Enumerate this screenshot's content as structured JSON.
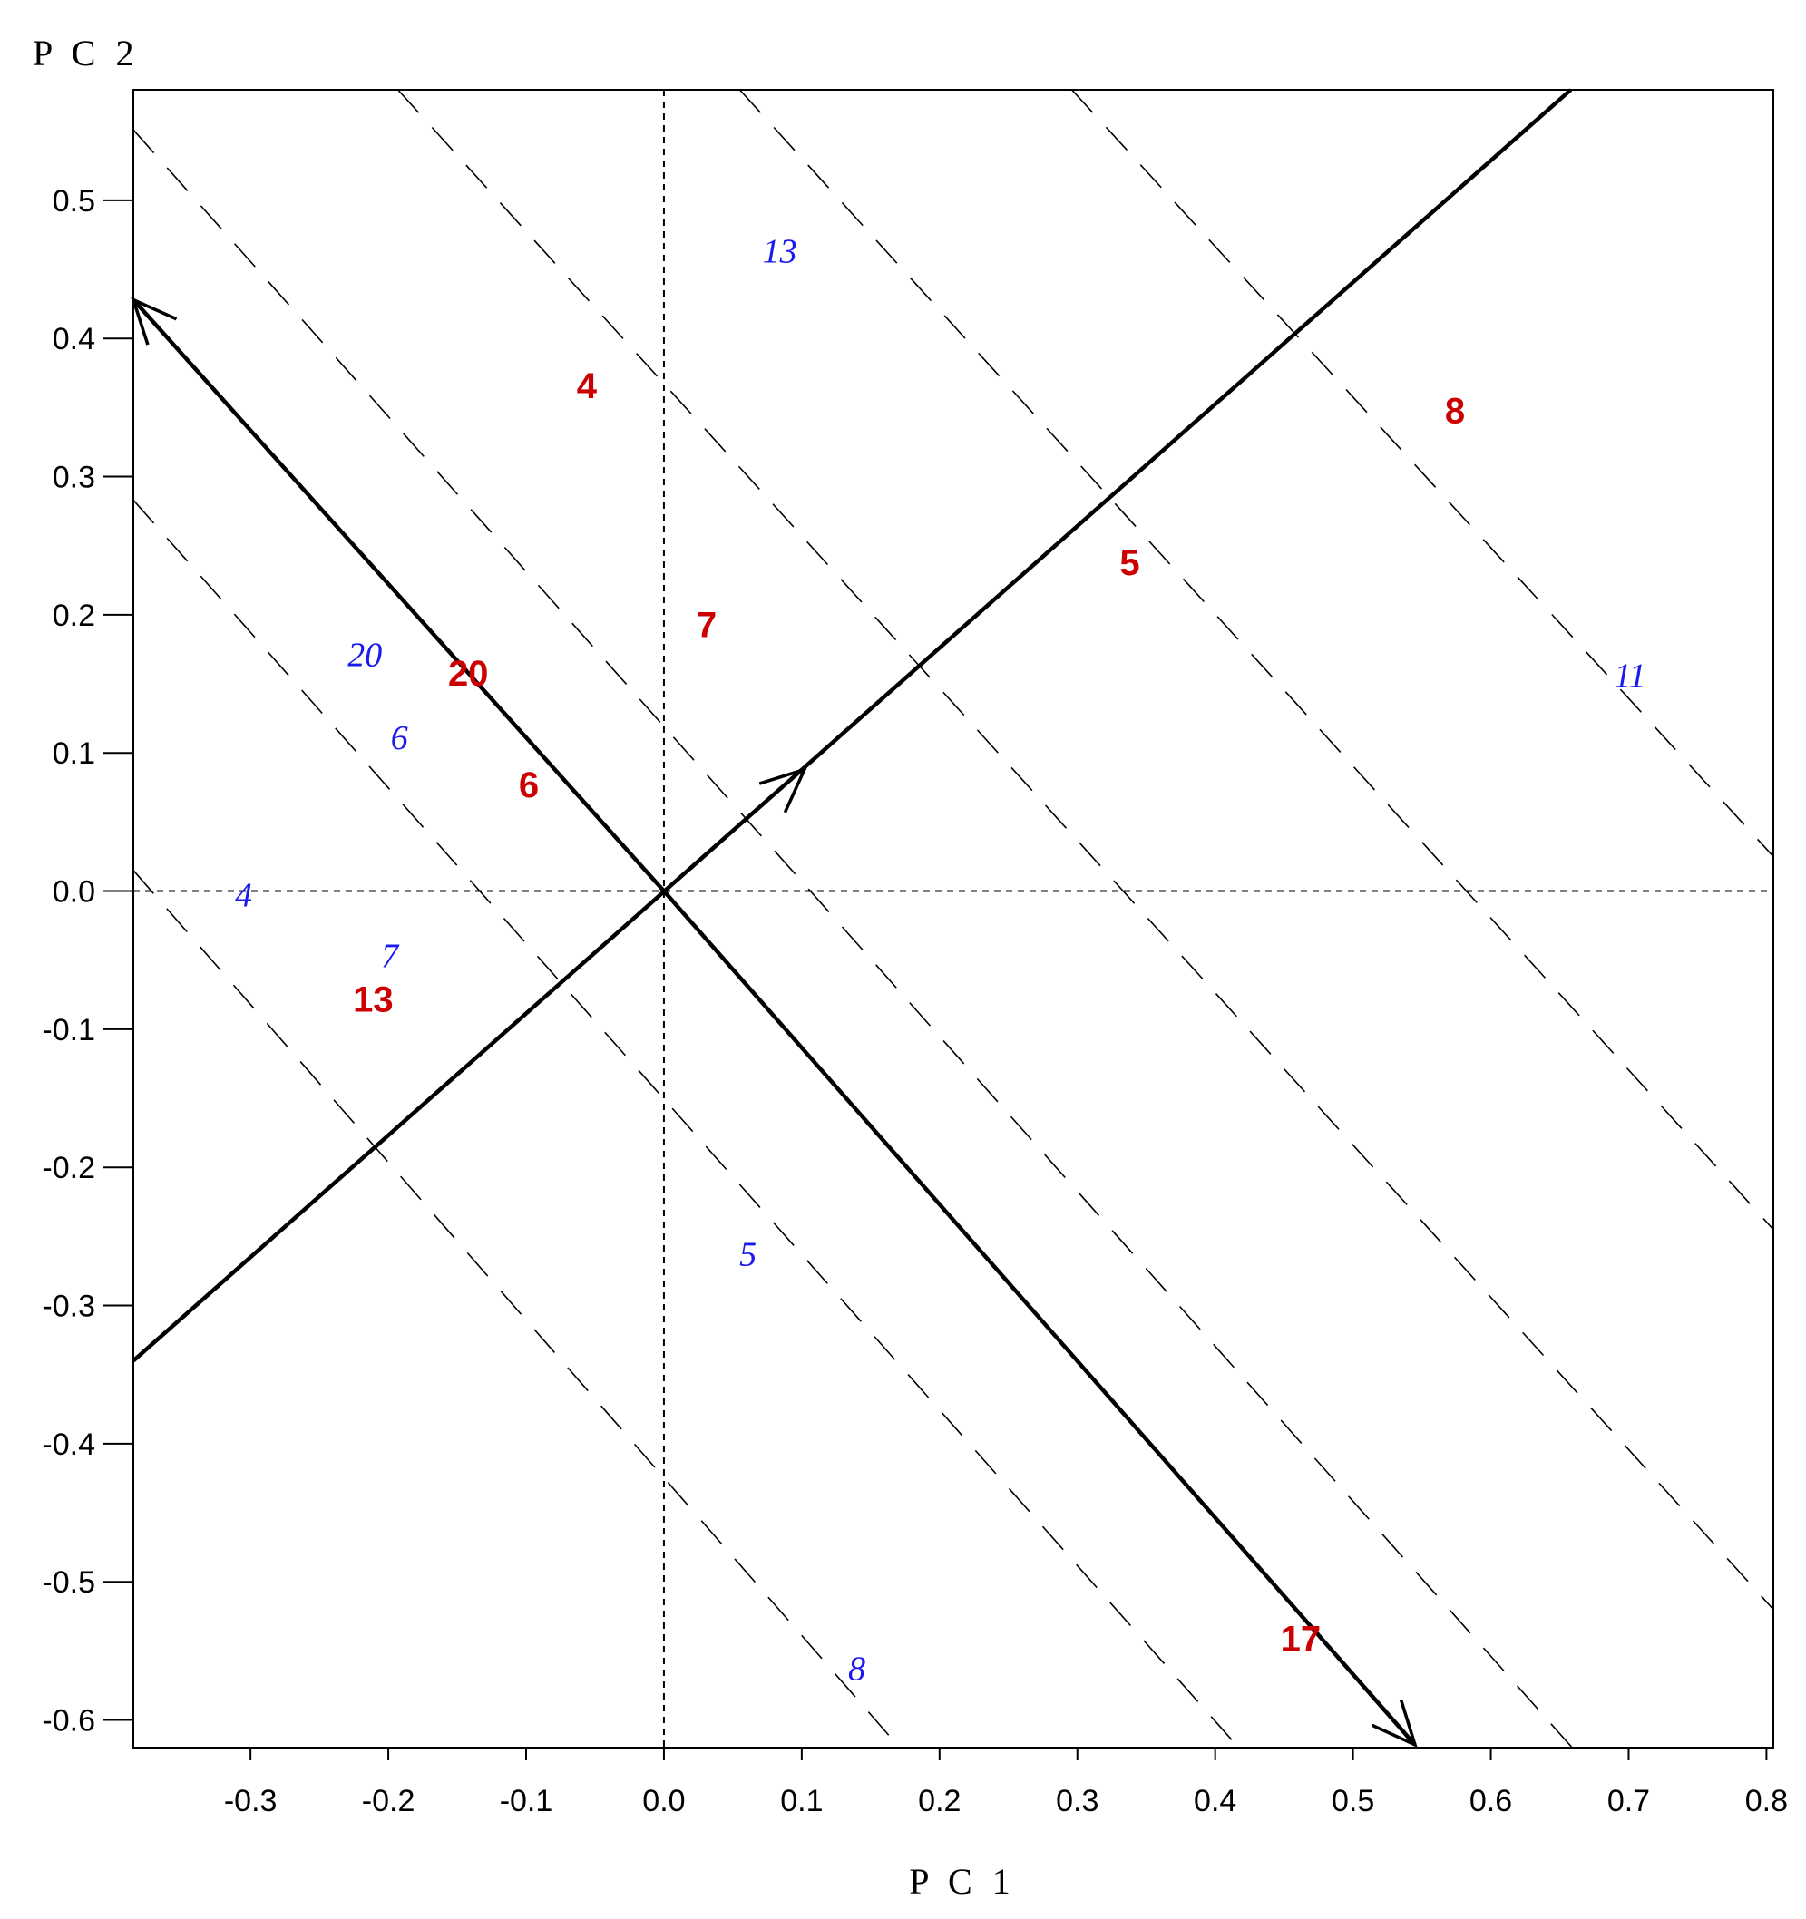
{
  "chart_data": {
    "type": "scatter",
    "xlabel": "P C 1",
    "ylabel": "P C 2",
    "xlim": [
      -0.385,
      0.805
    ],
    "ylim": [
      -0.62,
      0.58
    ],
    "x_ticks": [
      "-0.3",
      "-0.2",
      "-0.1",
      "0.0",
      "0.1",
      "0.2",
      "0.3",
      "0.4",
      "0.5",
      "0.6",
      "0.7",
      "0.8"
    ],
    "x_tick_values": [
      -0.3,
      -0.2,
      -0.1,
      0.0,
      0.1,
      0.2,
      0.3,
      0.4,
      0.5,
      0.6,
      0.7,
      0.8
    ],
    "y_ticks": [
      "0.5",
      "0.4",
      "0.3",
      "0.2",
      "0.1",
      "0.0",
      "-0.1",
      "-0.2",
      "-0.3",
      "-0.4",
      "-0.5",
      "-0.6"
    ],
    "y_tick_values": [
      0.5,
      0.4,
      0.3,
      0.2,
      0.1,
      0.0,
      -0.1,
      -0.2,
      -0.3,
      -0.4,
      -0.5,
      -0.6
    ],
    "zero_lines": "dotted",
    "grid": false,
    "colors": {
      "red_series": "#cc0000",
      "blue_series": "#1a1aee",
      "lines": "#000000"
    },
    "series": [
      {
        "style": "red-bold",
        "points": [
          {
            "label": "4",
            "x": -0.056,
            "y": 0.366
          },
          {
            "label": "8",
            "x": 0.574,
            "y": 0.348
          },
          {
            "label": "5",
            "x": 0.338,
            "y": 0.238
          },
          {
            "label": "7",
            "x": 0.031,
            "y": 0.193
          },
          {
            "label": "20",
            "x": -0.142,
            "y": 0.158
          },
          {
            "label": "6",
            "x": -0.098,
            "y": 0.077
          },
          {
            "label": "13",
            "x": -0.211,
            "y": -0.078
          },
          {
            "label": "17",
            "x": 0.462,
            "y": -0.541
          }
        ]
      },
      {
        "style": "blue-italic",
        "points": [
          {
            "label": "13",
            "x": 0.084,
            "y": 0.464
          },
          {
            "label": "11",
            "x": 0.701,
            "y": 0.157
          },
          {
            "label": "20",
            "x": -0.217,
            "y": 0.172
          },
          {
            "label": "6",
            "x": -0.192,
            "y": 0.112
          },
          {
            "label": "4",
            "x": -0.305,
            "y": -0.002
          },
          {
            "label": "7",
            "x": -0.199,
            "y": -0.046
          },
          {
            "label": "5",
            "x": 0.061,
            "y": -0.262
          },
          {
            "label": "8",
            "x": 0.14,
            "y": -0.562
          }
        ]
      }
    ],
    "axes_lines": [
      {
        "from": [
          0.0,
          0.0
        ],
        "to": [
          -0.385,
          0.428
        ],
        "arrow": true
      },
      {
        "from": [
          0.0,
          0.0
        ],
        "to": [
          0.545,
          -0.618
        ],
        "arrow": true
      },
      {
        "from": [
          -0.385,
          -0.34
        ],
        "to": [
          0.658,
          0.58
        ],
        "arrow": false
      }
    ],
    "arrow_markers": [
      {
        "at": [
          0.102,
          0.088
        ]
      }
    ],
    "dashed_lines": [
      {
        "from": [
          -0.385,
          0.015
        ],
        "to": [
          0.171,
          -0.62
        ]
      },
      {
        "from": [
          -0.385,
          0.283
        ],
        "to": [
          0.417,
          -0.62
        ]
      },
      {
        "from": [
          -0.385,
          0.551
        ],
        "to": [
          0.659,
          -0.62
        ]
      },
      {
        "from": [
          -0.193,
          0.58
        ],
        "to": [
          0.805,
          -0.52
        ]
      },
      {
        "from": [
          0.055,
          0.58
        ],
        "to": [
          0.805,
          -0.245
        ]
      },
      {
        "from": [
          0.296,
          0.58
        ],
        "to": [
          0.805,
          0.025
        ]
      }
    ]
  }
}
